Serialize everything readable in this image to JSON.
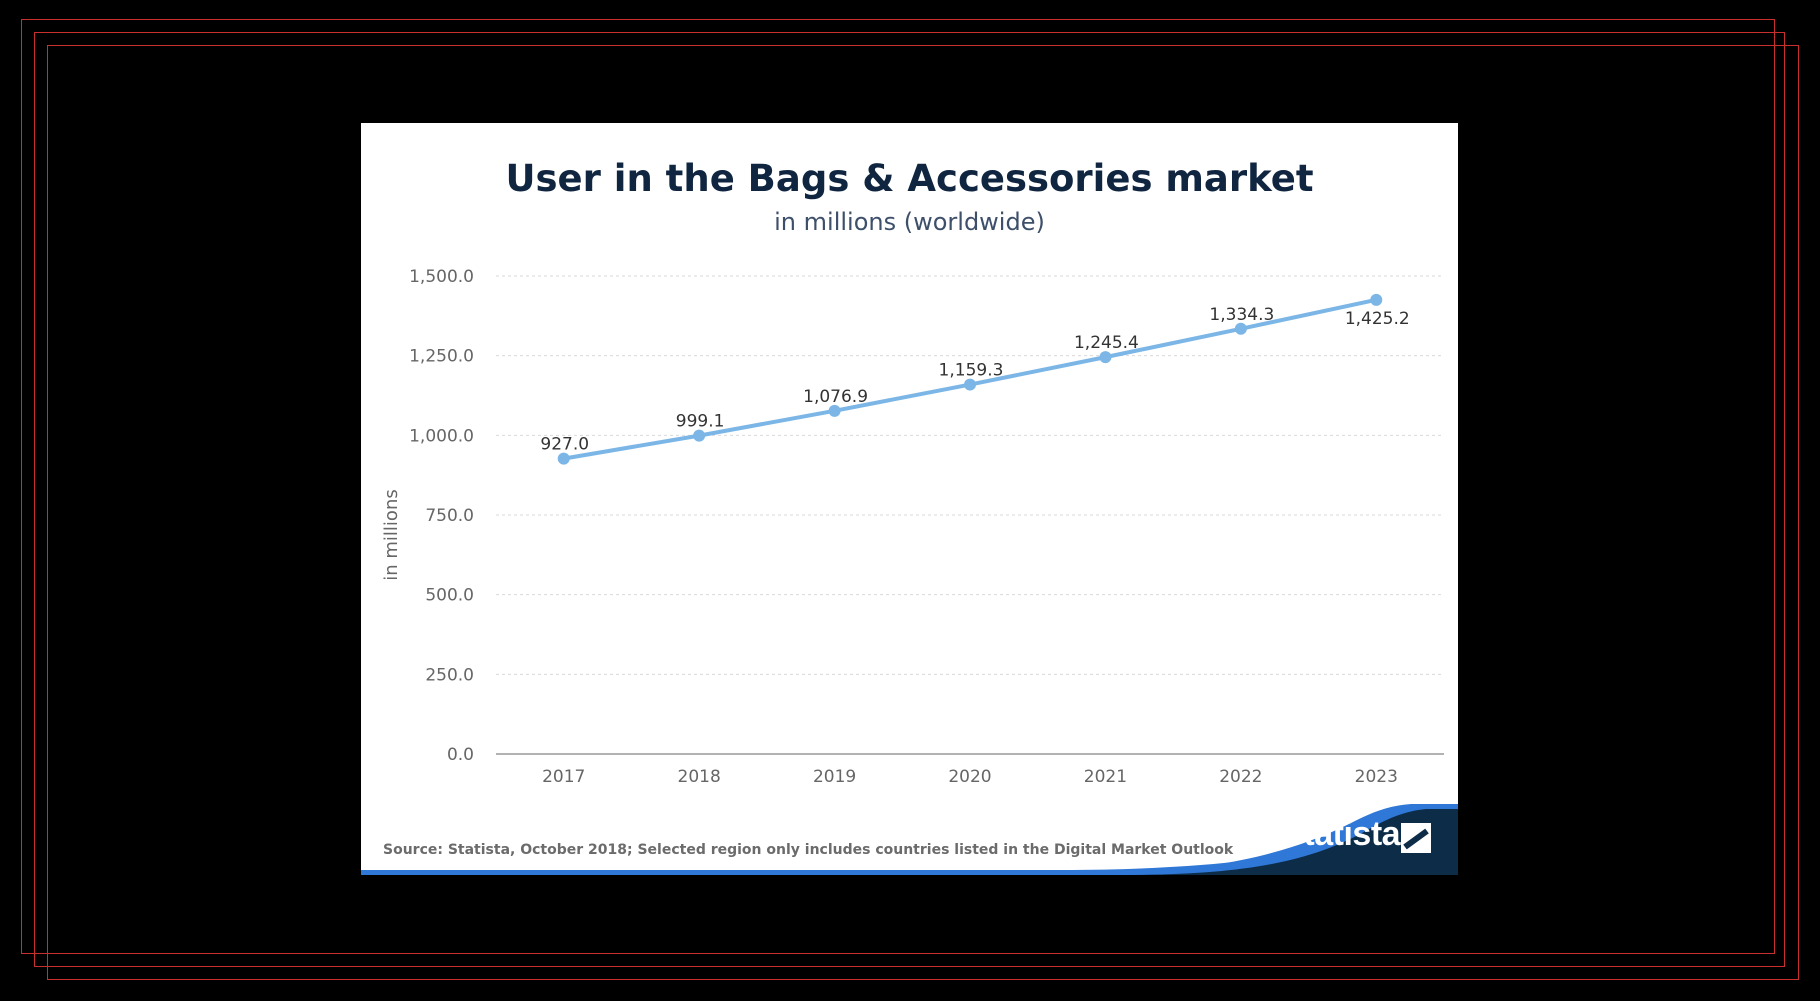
{
  "chart_data": {
    "type": "line",
    "title": "User in the Bags & Accessories market",
    "subtitle": "in millions (worldwide)",
    "xlabel": "",
    "ylabel": "in millions",
    "categories": [
      "2017",
      "2018",
      "2019",
      "2020",
      "2021",
      "2022",
      "2023"
    ],
    "series": [
      {
        "values": [
          927.0,
          999.1,
          1076.9,
          1159.3,
          1245.4,
          1334.3,
          1425.2
        ],
        "labels": [
          "927.0",
          "999.1",
          "1,076.9",
          "1,159.3",
          "1,245.4",
          "1,334.3",
          "1,425.2"
        ]
      }
    ],
    "ylim": [
      0,
      1500
    ],
    "yticks": [
      0,
      250,
      500,
      750,
      1000,
      1250,
      1500
    ],
    "ytick_labels": [
      "0.0",
      "250.0",
      "500.0",
      "750.0",
      "1,000.0",
      "1,250.0",
      "1,500.0"
    ],
    "grid": true,
    "legend": "none"
  },
  "footer": {
    "source": "Source: Statista, October 2018; Selected region only includes countries listed in the Digital Market Outlook",
    "brand": "statista"
  },
  "colors": {
    "line": "#7bb6e6",
    "title": "#0f2540",
    "footer_dark": "#0c2c48",
    "footer_blue": "#2f78d8"
  }
}
